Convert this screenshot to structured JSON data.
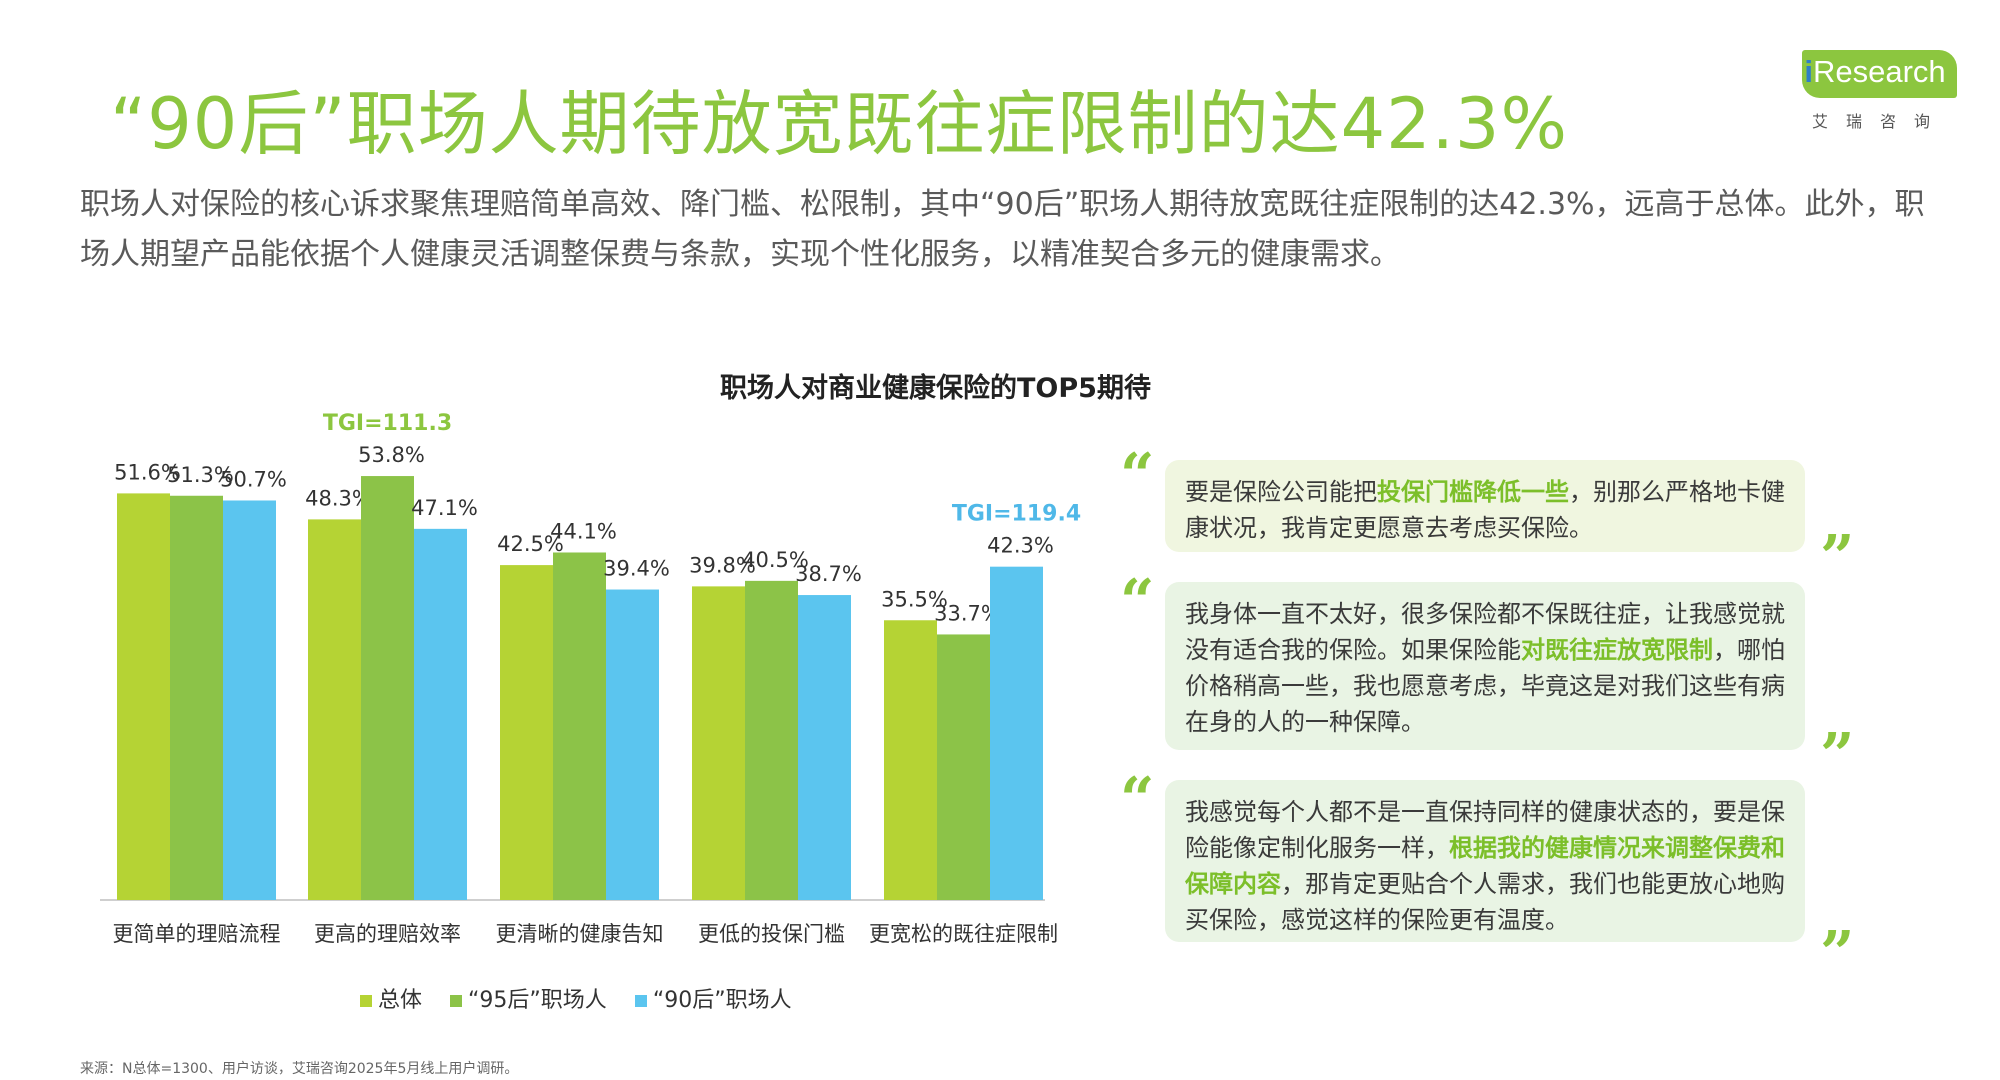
{
  "header": {
    "title": "“90后”职场人期待放宽既往症限制的达42.3%",
    "subtitle": "职场人对保险的核心诉求聚焦理赔简单高效、降门槛、松限制，其中“90后”职场人期待放宽既往症限制的达42.3%，远高于总体。此外，职场人期望产品能依据个人健康灵活调整保费与条款，实现个性化服务，以精准契合多元的健康需求。"
  },
  "logo": {
    "prefix": "i",
    "name": "Research",
    "sub": "艾瑞咨询"
  },
  "chart_data": {
    "type": "bar",
    "title": "职场人对商业健康保险的TOP5期待",
    "categories": [
      "更简单的理赔流程",
      "更高的理赔效率",
      "更清晰的健康告知",
      "更低的投保门槛",
      "更宽松的既往症限制"
    ],
    "series": [
      {
        "name": "总体",
        "color": "#b5d334",
        "values": [
          51.6,
          48.3,
          42.5,
          39.8,
          35.5
        ]
      },
      {
        "name": "“95后”职场人",
        "color": "#8cc348",
        "values": [
          51.3,
          53.8,
          44.1,
          40.5,
          33.7
        ]
      },
      {
        "name": "“90后”职场人",
        "color": "#5bc5ef",
        "values": [
          50.7,
          47.1,
          39.4,
          38.7,
          42.3
        ]
      }
    ],
    "value_labels": [
      [
        "51.6%",
        "48.3%",
        "42.5%",
        "39.8%",
        "35.5%"
      ],
      [
        "51.3%",
        "53.8%",
        "44.1%",
        "40.5%",
        "33.7%"
      ],
      [
        "50.7%",
        "47.1%",
        "39.4%",
        "38.7%",
        "42.3%"
      ]
    ],
    "annotations": [
      {
        "text": "TGI=111.3",
        "category_index": 1,
        "series_index": 1,
        "color": "#8cc63f"
      },
      {
        "text": "TGI=119.4",
        "category_index": 4,
        "series_index": 2,
        "color": "#4fb8e8"
      }
    ],
    "ylim": [
      0,
      60
    ],
    "grid": false,
    "legend_position": "bottom"
  },
  "quotes": [
    {
      "before": "要是保险公司能把",
      "highlight": "投保门槛降低一些",
      "after": "，别那么严格地卡健康状况，我肯定更愿意去考虑买保险。",
      "bg": "#f0f6e0"
    },
    {
      "before": "我身体一直不太好，很多保险都不保既往症，让我感觉就没有适合我的保险。如果保险能",
      "highlight": "对既往症放宽限制",
      "after": "，哪怕价格稍高一些，我也愿意考虑，毕竟这是对我们这些有病在身的人的一种保障。",
      "bg": "#e9f4e4"
    },
    {
      "before": "我感觉每个人都不是一直保持同样的健康状态的，要是保险能像定制化服务一样，",
      "highlight": "根据我的健康情况来调整保费和保障内容",
      "after": "，那肯定更贴合个人需求，我们也能更放心地购买保险，感觉这样的保险更有温度。",
      "bg": "#e9f4e4"
    }
  ],
  "quote_marks": {
    "open": "“",
    "close": "”"
  },
  "source": "来源：N总体=1300、用户访谈，艾瑞咨询2025年5月线上用户调研。"
}
